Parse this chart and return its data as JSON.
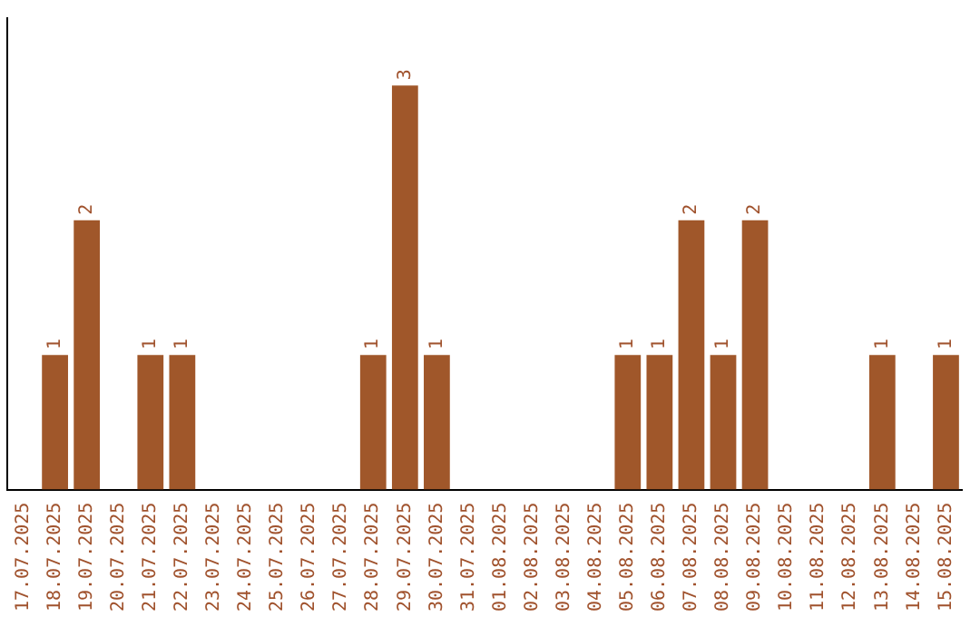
{
  "chart_data": {
    "type": "bar",
    "categories": [
      "17.07.2025",
      "18.07.2025",
      "19.07.2025",
      "20.07.2025",
      "21.07.2025",
      "22.07.2025",
      "23.07.2025",
      "24.07.2025",
      "25.07.2025",
      "26.07.2025",
      "27.07.2025",
      "28.07.2025",
      "29.07.2025",
      "30.07.2025",
      "31.07.2025",
      "01.08.2025",
      "02.08.2025",
      "03.08.2025",
      "04.08.2025",
      "05.08.2025",
      "06.08.2025",
      "07.08.2025",
      "08.08.2025",
      "09.08.2025",
      "10.08.2025",
      "11.08.2025",
      "12.08.2025",
      "13.08.2025",
      "14.08.2025",
      "15.08.2025"
    ],
    "values": [
      0,
      1,
      2,
      0,
      1,
      1,
      0,
      0,
      0,
      0,
      0,
      1,
      3,
      1,
      0,
      0,
      0,
      0,
      0,
      1,
      1,
      2,
      1,
      2,
      0,
      0,
      0,
      1,
      0,
      1
    ],
    "value_labels": [
      null,
      "1",
      "2",
      null,
      "1",
      "1",
      null,
      null,
      null,
      null,
      null,
      "1",
      "3",
      "1",
      null,
      null,
      null,
      null,
      null,
      "1",
      "1",
      "2",
      "1",
      "2",
      null,
      null,
      null,
      "1",
      null,
      "1"
    ],
    "color": "#a0572a",
    "grid": false,
    "legend": false,
    "tick_labels": "x"
  }
}
